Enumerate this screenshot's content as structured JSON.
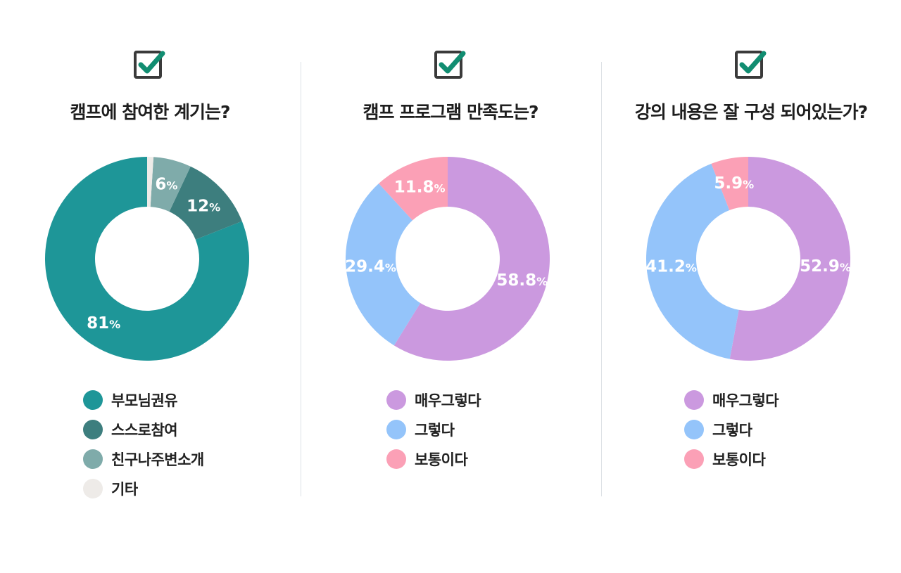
{
  "chart_data": [
    {
      "type": "pie",
      "title": "캠프에 참여한 계기는?",
      "categories": [
        "부모님권유",
        "스스로참여",
        "친구나주변소개",
        "기타"
      ],
      "values": [
        81,
        12,
        6,
        1
      ],
      "labels": [
        "81",
        "12",
        "6",
        ""
      ],
      "unit": "%",
      "colors": [
        "#1e9698",
        "#3d7e7e",
        "#7fabaa",
        "#eeebe8"
      ],
      "legend": "bottom"
    },
    {
      "type": "pie",
      "title": "캠프 프로그램 만족도는?",
      "categories": [
        "매우그렇다",
        "그렇다",
        "보통이다"
      ],
      "values": [
        58.8,
        29.4,
        11.8
      ],
      "labels": [
        "58.8",
        "29.4",
        "11.8"
      ],
      "unit": "%",
      "colors": [
        "#cb99df",
        "#94c4fa",
        "#fba0b6"
      ],
      "legend": "bottom"
    },
    {
      "type": "pie",
      "title": "강의 내용은 잘 구성 되어있는가?",
      "categories": [
        "매우그렇다",
        "그렇다",
        "보통이다"
      ],
      "values": [
        52.9,
        41.2,
        5.9
      ],
      "labels": [
        "52.9",
        "41.2",
        "5.9"
      ],
      "unit": "%",
      "colors": [
        "#cb99df",
        "#94c4fa",
        "#fba0b6"
      ],
      "legend": "bottom"
    }
  ]
}
